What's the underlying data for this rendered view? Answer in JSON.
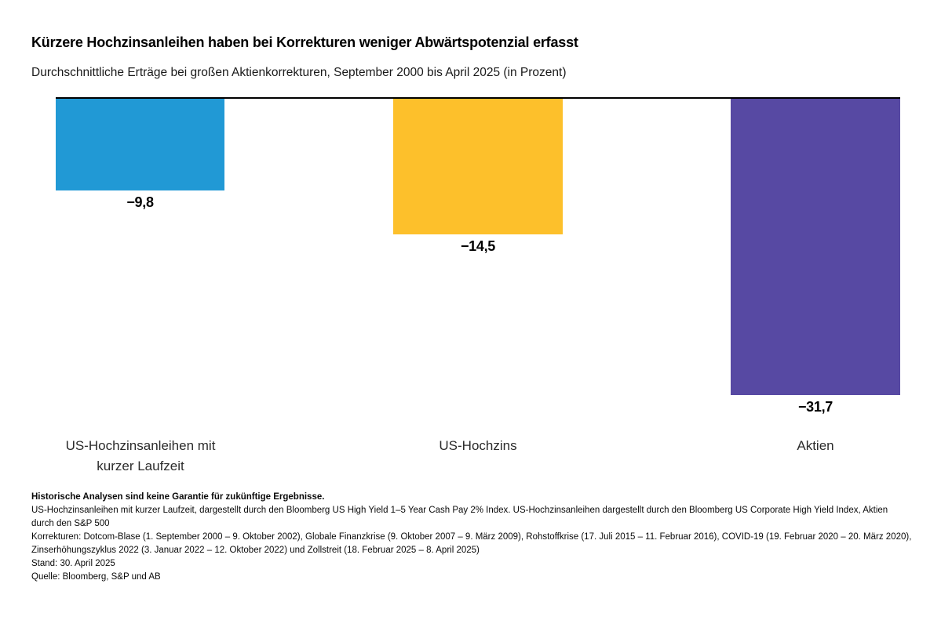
{
  "header": {
    "title": "Kürzere Hochzinsanleihen haben bei Korrekturen weniger Abwärtspotenzial erfasst",
    "subtitle": "Durchschnittliche Erträge bei großen Aktienkorrekturen, September 2000 bis April 2025 (in Prozent)"
  },
  "chart_data": {
    "type": "bar",
    "title": "Kürzere Hochzinsanleihen haben bei Korrekturen weniger Abwärtspotenzial erfasst",
    "subtitle": "Durchschnittliche Erträge bei großen Aktienkorrekturen, September 2000 bis April 2025 (in Prozent)",
    "unit": "Prozent",
    "categories": [
      "US-Hochzinsanleihen mit kurzer Laufzeit",
      "US-Hochzins",
      "Aktien"
    ],
    "values": [
      -9.8,
      -14.5,
      -31.7
    ],
    "value_labels": [
      "−9,8",
      "−14,5",
      "−31,7"
    ],
    "bar_colors": [
      "#2199D5",
      "#FDC02B",
      "#5749A3"
    ],
    "baseline_value": 0,
    "ylim": [
      -35,
      0
    ],
    "grid": false,
    "legend_position": "none",
    "orientation": "vertical",
    "bars_extend": "downward-from-zero-line"
  },
  "footnotes": {
    "disclaimer": "Historische Analysen sind keine Garantie für zukünftige Ergebnisse.",
    "definitions": "US-Hochzinsanleihen mit kurzer Laufzeit, dargestellt durch den Bloomberg US High Yield 1–5 Year Cash Pay 2% Index. US-Hochzinsanleihen dargestellt durch den Bloomberg US Corporate High Yield Index, Aktien durch den S&P 500",
    "corrections": "Korrekturen: Dotcom-Blase (1. September 2000 – 9. Oktober 2002), Globale Finanzkrise (9. Oktober 2007 – 9. März 2009), Rohstoffkrise (17. Juli 2015 – 11. Februar 2016), COVID-19 (19. Februar 2020 – 20. März 2020), Zinserhöhungszyklus 2022 (3. Januar 2022 – 12. Oktober 2022) und Zollstreit (18. Februar 2025 – 8. April 2025)",
    "as_of": "Stand: 30. April 2025",
    "source": "Quelle: Bloomberg, S&P und AB"
  }
}
